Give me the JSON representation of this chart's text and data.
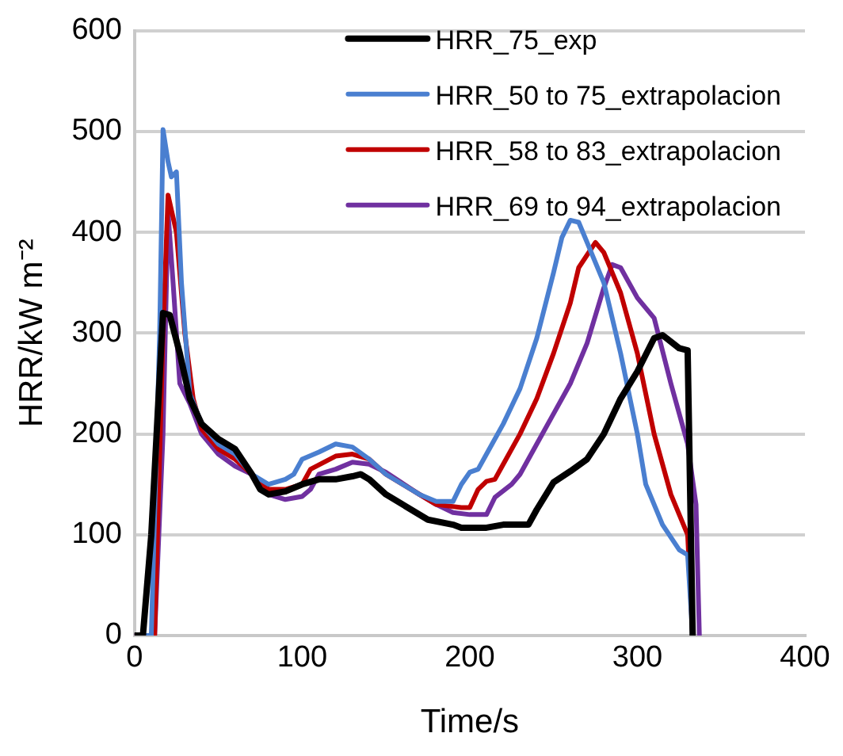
{
  "chart_data": {
    "type": "line",
    "xlabel": "Time/s",
    "ylabel": "HRR/kW m⁻²",
    "xlim": [
      0,
      400
    ],
    "xticks": [
      0,
      100,
      200,
      300,
      400
    ],
    "ylim": [
      0,
      600
    ],
    "yticks": [
      0,
      100,
      200,
      300,
      400,
      500,
      600
    ],
    "grid": "y",
    "legend": "top right",
    "marker": "none",
    "line_style": "solid",
    "series": [
      {
        "name": "HRR_75_exp",
        "color": "#000000",
        "x": [
          0,
          5,
          10,
          17,
          21,
          27,
          33,
          40,
          50,
          60,
          70,
          75,
          80,
          90,
          100,
          110,
          120,
          130,
          135,
          140,
          150,
          160,
          175,
          190,
          195,
          210,
          220,
          235,
          240,
          250,
          260,
          270,
          280,
          290,
          300,
          310,
          315,
          325,
          330,
          333
        ],
        "values": [
          0,
          0,
          100,
          320,
          318,
          280,
          235,
          210,
          195,
          185,
          160,
          145,
          140,
          143,
          150,
          155,
          155,
          158,
          160,
          155,
          140,
          130,
          115,
          110,
          107,
          107,
          110,
          110,
          125,
          152,
          163,
          175,
          200,
          235,
          262,
          295,
          298,
          285,
          283,
          0
        ]
      },
      {
        "name": "HRR_50 to 75_extrapolacion",
        "color": "#4a7fd0",
        "x": [
          0,
          10,
          15,
          17,
          20,
          22,
          25,
          28,
          33,
          40,
          50,
          60,
          70,
          80,
          90,
          95,
          100,
          110,
          120,
          130,
          140,
          150,
          160,
          170,
          180,
          190,
          195,
          200,
          205,
          210,
          220,
          230,
          240,
          250,
          255,
          260,
          265,
          270,
          280,
          290,
          300,
          305,
          315,
          325,
          330,
          333
        ],
        "values": [
          0,
          0,
          300,
          502,
          470,
          455,
          460,
          350,
          240,
          210,
          190,
          180,
          160,
          150,
          155,
          160,
          175,
          182,
          190,
          187,
          175,
          160,
          150,
          140,
          133,
          133,
          150,
          162,
          165,
          180,
          210,
          245,
          295,
          360,
          395,
          412,
          410,
          390,
          350,
          280,
          200,
          150,
          110,
          85,
          80,
          0
        ]
      },
      {
        "name": "HRR_58 to 83_extrapolacion",
        "color": "#c00000",
        "x": [
          0,
          12,
          17,
          20,
          25,
          30,
          35,
          40,
          50,
          60,
          70,
          80,
          90,
          100,
          105,
          120,
          130,
          140,
          150,
          170,
          180,
          195,
          200,
          205,
          210,
          215,
          220,
          230,
          240,
          250,
          260,
          265,
          275,
          280,
          290,
          300,
          310,
          320,
          330,
          333
        ],
        "values": [
          0,
          0,
          300,
          437,
          400,
          300,
          235,
          205,
          185,
          175,
          160,
          145,
          145,
          150,
          165,
          178,
          180,
          175,
          160,
          140,
          130,
          127,
          127,
          145,
          153,
          155,
          170,
          200,
          235,
          280,
          330,
          365,
          390,
          380,
          340,
          280,
          200,
          140,
          100,
          0
        ]
      },
      {
        "name": "HRR_69 to 94_extrapolacion",
        "color": "#7030a0",
        "x": [
          0,
          12,
          17,
          20,
          23,
          27,
          33,
          40,
          50,
          60,
          70,
          80,
          90,
          100,
          105,
          110,
          120,
          130,
          140,
          150,
          170,
          180,
          190,
          200,
          210,
          215,
          225,
          230,
          240,
          250,
          260,
          270,
          280,
          285,
          290,
          300,
          310,
          320,
          330,
          335,
          337
        ],
        "values": [
          0,
          0,
          200,
          420,
          350,
          250,
          230,
          200,
          180,
          168,
          160,
          140,
          135,
          138,
          145,
          160,
          165,
          172,
          170,
          162,
          140,
          130,
          122,
          120,
          120,
          137,
          150,
          160,
          190,
          220,
          250,
          290,
          345,
          368,
          365,
          335,
          315,
          250,
          190,
          130,
          0
        ]
      }
    ]
  }
}
